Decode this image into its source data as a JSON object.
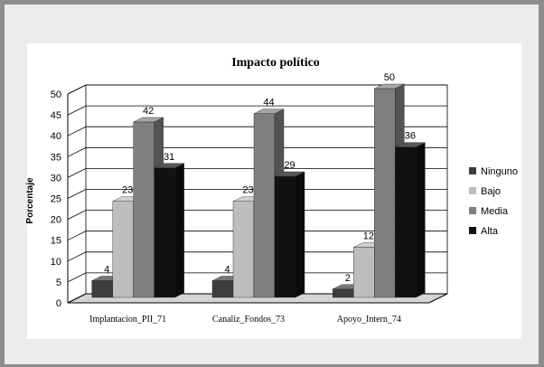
{
  "chart_data": {
    "type": "bar",
    "title": "Impacto político",
    "ylabel": "Porcentaje",
    "xlabel": "",
    "categories": [
      "Implantacion_PII_71",
      "Canaliz_Fondos_73",
      "Apoyo_Intern_74"
    ],
    "series": [
      {
        "name": "Ninguno",
        "values": [
          4,
          4,
          2
        ]
      },
      {
        "name": "Bajo",
        "values": [
          23,
          23,
          12
        ]
      },
      {
        "name": "Media",
        "values": [
          42,
          44,
          50
        ]
      },
      {
        "name": "Alta",
        "values": [
          31,
          29,
          36
        ]
      }
    ],
    "yticks": [
      "0",
      "5",
      "10",
      "15",
      "20",
      "25",
      "30",
      "35",
      "40",
      "45",
      "50"
    ],
    "ylim": [
      0,
      50
    ],
    "grid": true,
    "legend_position": "right",
    "colors": {
      "Ninguno": "#3d3d3d",
      "Bajo": "#bdbdbd",
      "Media": "#7f7f7f",
      "Alta": "#111111"
    }
  }
}
